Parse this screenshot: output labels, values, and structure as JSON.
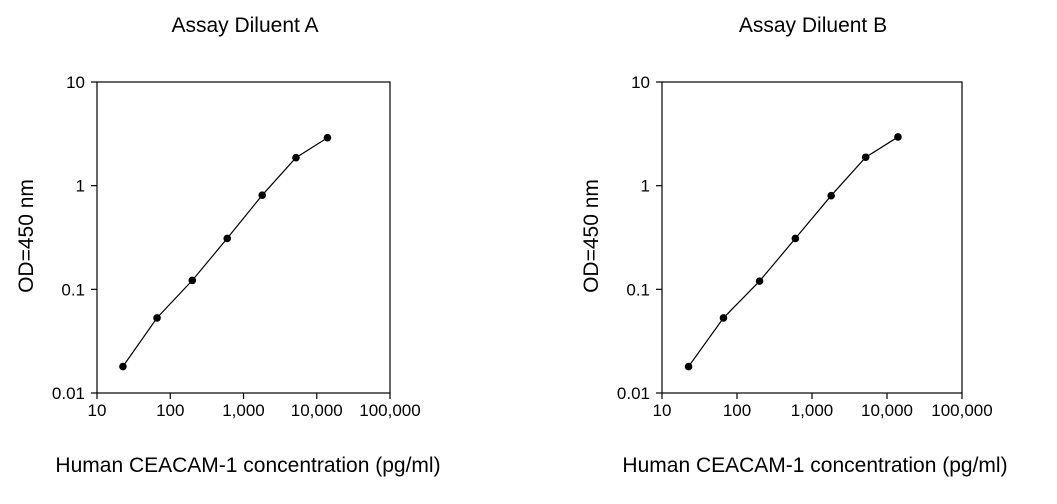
{
  "chart_data": [
    {
      "type": "line",
      "title": "Assay Diluent A",
      "xlabel": "Human CEACAM-1 concentration (pg/ml)",
      "ylabel": "OD=450 nm",
      "xscale": "log",
      "yscale": "log",
      "xlim": [
        10,
        100000
      ],
      "ylim": [
        0.01,
        10
      ],
      "xticks": [
        10,
        100,
        1000,
        10000,
        100000
      ],
      "xtick_labels": [
        "10",
        "100",
        "1,000",
        "10,000",
        "100,000"
      ],
      "yticks": [
        0.01,
        0.1,
        1,
        10
      ],
      "ytick_labels": [
        "0.01",
        "0.1",
        "1",
        "10"
      ],
      "grid": false,
      "legend": "none",
      "series": [
        {
          "x": [
            22.6,
            66,
            200,
            600,
            1800,
            5200,
            14000
          ],
          "y": [
            0.018,
            0.053,
            0.122,
            0.31,
            0.81,
            1.86,
            2.9
          ]
        }
      ]
    },
    {
      "type": "line",
      "title": "Assay Diluent B",
      "xlabel": "Human CEACAM-1 concentration (pg/ml)",
      "ylabel": "OD=450 nm",
      "xscale": "log",
      "yscale": "log",
      "xlim": [
        10,
        100000
      ],
      "ylim": [
        0.01,
        10
      ],
      "xticks": [
        10,
        100,
        1000,
        10000,
        100000
      ],
      "xtick_labels": [
        "10",
        "100",
        "1,000",
        "10,000",
        "100,000"
      ],
      "yticks": [
        0.01,
        0.1,
        1,
        10
      ],
      "ytick_labels": [
        "0.01",
        "0.1",
        "1",
        "10"
      ],
      "grid": false,
      "legend": "none",
      "series": [
        {
          "x": [
            22.6,
            66,
            200,
            600,
            1800,
            5200,
            14000
          ],
          "y": [
            0.018,
            0.053,
            0.12,
            0.31,
            0.8,
            1.88,
            2.95
          ]
        }
      ]
    }
  ]
}
